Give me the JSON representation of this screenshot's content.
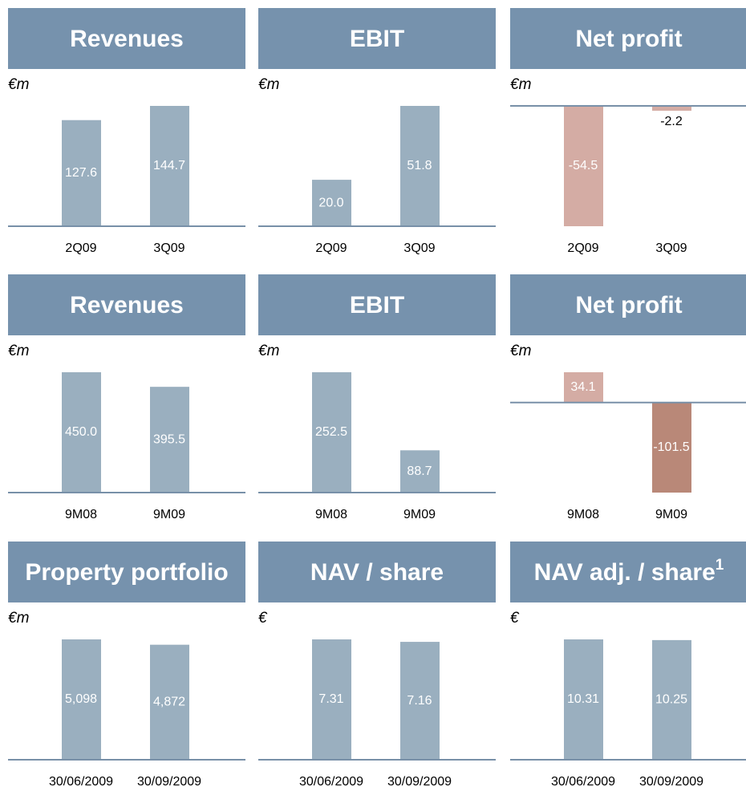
{
  "chart_data": [
    {
      "type": "bar",
      "title": "Revenues",
      "unit": "€m",
      "categories": [
        "2Q09",
        "3Q09"
      ],
      "values": [
        127.6,
        144.7
      ],
      "value_labels": [
        "127.6",
        "144.7"
      ],
      "colors": [
        "#9aafbf",
        "#9aafbf"
      ]
    },
    {
      "type": "bar",
      "title": "EBIT",
      "unit": "€m",
      "categories": [
        "2Q09",
        "3Q09"
      ],
      "values": [
        20.0,
        51.8
      ],
      "value_labels": [
        "20.0",
        "51.8"
      ],
      "colors": [
        "#9aafbf",
        "#9aafbf"
      ]
    },
    {
      "type": "bar",
      "title": "Net profit",
      "unit": "€m",
      "categories": [
        "2Q09",
        "3Q09"
      ],
      "values": [
        -54.5,
        -2.2
      ],
      "value_labels": [
        "-54.5",
        "-2.2"
      ],
      "colors": [
        "#d4aca4",
        "#d4aca4"
      ]
    },
    {
      "type": "bar",
      "title": "Revenues",
      "unit": "€m",
      "categories": [
        "9M08",
        "9M09"
      ],
      "values": [
        450.0,
        395.5
      ],
      "value_labels": [
        "450.0",
        "395.5"
      ],
      "colors": [
        "#9aafbf",
        "#9aafbf"
      ]
    },
    {
      "type": "bar",
      "title": "EBIT",
      "unit": "€m",
      "categories": [
        "9M08",
        "9M09"
      ],
      "values": [
        252.5,
        88.7
      ],
      "value_labels": [
        "252.5",
        "88.7"
      ],
      "colors": [
        "#9aafbf",
        "#9aafbf"
      ]
    },
    {
      "type": "bar",
      "title": "Net profit",
      "unit": "€m",
      "categories": [
        "9M08",
        "9M09"
      ],
      "values": [
        34.1,
        -101.5
      ],
      "value_labels": [
        "34.1",
        "-101.5"
      ],
      "colors": [
        "#d4aca4",
        "#b98878"
      ]
    },
    {
      "type": "bar",
      "title": "Property portfolio",
      "unit": "€m",
      "categories": [
        "30/06/2009",
        "30/09/2009"
      ],
      "values": [
        5098,
        4872
      ],
      "value_labels": [
        "5,098",
        "4,872"
      ],
      "colors": [
        "#9aafbf",
        "#9aafbf"
      ]
    },
    {
      "type": "bar",
      "title": "NAV / share",
      "unit": "€",
      "categories": [
        "30/06/2009",
        "30/09/2009"
      ],
      "values": [
        7.31,
        7.16
      ],
      "value_labels": [
        "7.31",
        "7.16"
      ],
      "colors": [
        "#9aafbf",
        "#9aafbf"
      ]
    },
    {
      "type": "bar",
      "title": "NAV adj. / share",
      "title_superscript": "1",
      "unit": "€",
      "categories": [
        "30/06/2009",
        "30/09/2009"
      ],
      "values": [
        10.31,
        10.25
      ],
      "value_labels": [
        "10.31",
        "10.25"
      ],
      "colors": [
        "#9aafbf",
        "#9aafbf"
      ]
    }
  ]
}
